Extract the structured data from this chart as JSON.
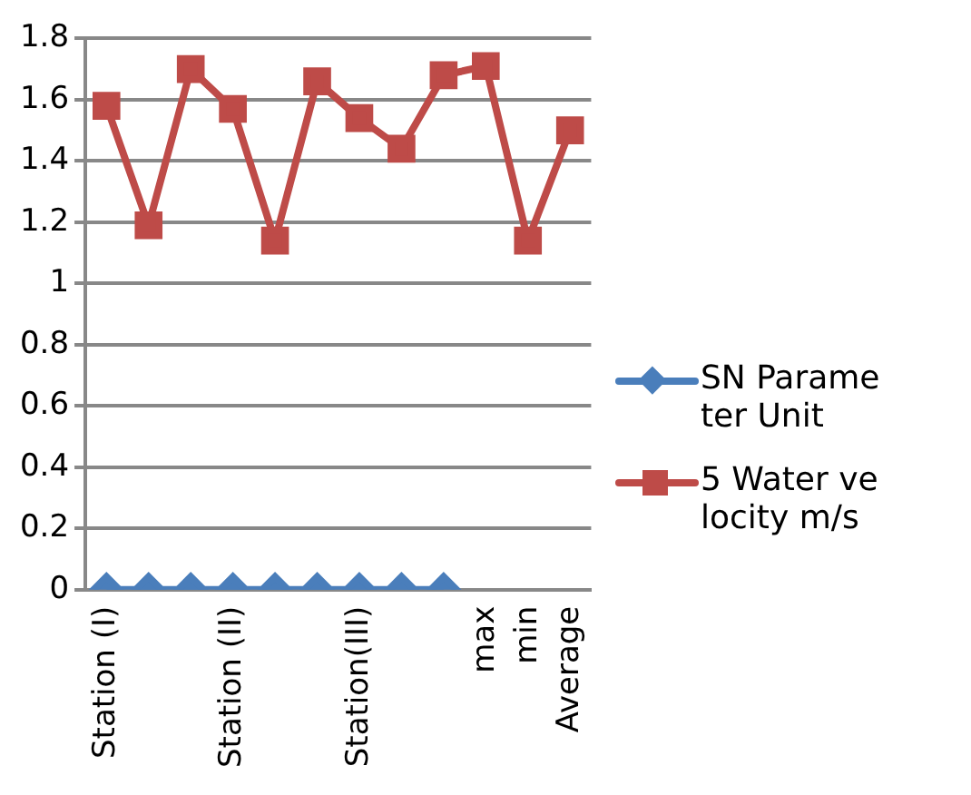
{
  "chart_data": {
    "type": "line",
    "categories": [
      "Station (I)",
      null,
      null,
      "Station (II)",
      null,
      null,
      "Station(III)",
      null,
      null,
      "max",
      "min",
      "Average"
    ],
    "series": [
      {
        "name": "SN Parameter Unit",
        "color": "#4a7ebb",
        "marker": "diamond",
        "values": [
          0,
          0,
          0,
          0,
          0,
          0,
          0,
          0,
          0,
          null,
          null,
          null
        ]
      },
      {
        "name": "5 Water velocity m/s",
        "color": "#be4b48",
        "marker": "square",
        "values": [
          1.58,
          1.19,
          1.7,
          1.57,
          1.14,
          1.66,
          1.54,
          1.44,
          1.68,
          1.71,
          1.14,
          1.5
        ]
      }
    ],
    "ylim": [
      0,
      1.8
    ],
    "yticks": [
      0,
      0.2,
      0.4,
      0.6,
      0.8,
      1,
      1.2,
      1.4,
      1.6,
      1.8
    ],
    "grid": "y",
    "legend": "right"
  }
}
